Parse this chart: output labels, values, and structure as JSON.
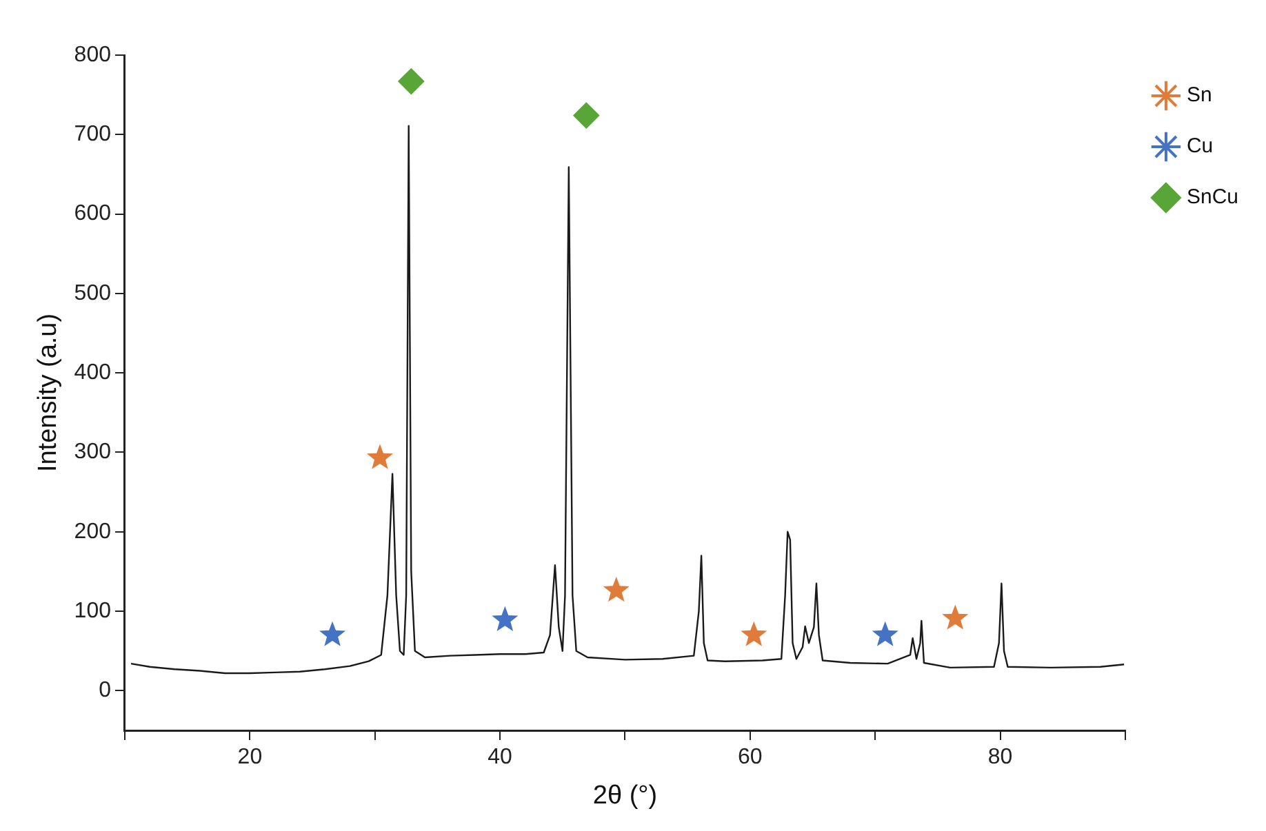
{
  "chart_data": {
    "type": "line",
    "xlabel": "2θ (°)",
    "ylabel": "Intensity (a.u)",
    "xlim": [
      10,
      90
    ],
    "xticks": [
      {
        "value": 10,
        "label": null
      },
      20,
      {
        "value": 30,
        "label": null
      },
      40,
      {
        "value": 50,
        "label": null
      },
      60,
      {
        "value": 70,
        "label": null
      },
      80,
      {
        "value": 90,
        "label": null
      }
    ],
    "ylim": [
      -50,
      800
    ],
    "yticks": [
      0,
      100,
      200,
      300,
      400,
      500,
      600,
      700,
      800
    ],
    "grid": false,
    "legend": "top right",
    "series": [
      {
        "type": "line",
        "color": "#1a1a1a",
        "marker": "none",
        "x": [
          10.5,
          12,
          14,
          16,
          18,
          20,
          22,
          24,
          26,
          28,
          29.5,
          30.5,
          31.0,
          31.4,
          31.7,
          32.0,
          32.3,
          32.5,
          32.7,
          32.9,
          33.2,
          34,
          36,
          38,
          40,
          42,
          43.5,
          44.0,
          44.4,
          44.7,
          45.0,
          45.2,
          45.5,
          45.8,
          46.1,
          47,
          50,
          53,
          55.5,
          55.9,
          56.1,
          56.3,
          56.6,
          58,
          61,
          62.5,
          62.8,
          63.0,
          63.2,
          63.4,
          63.7,
          64.2,
          64.4,
          64.7,
          65.1,
          65.3,
          65.5,
          65.8,
          68,
          71,
          72.8,
          73.0,
          73.3,
          73.6,
          73.7,
          73.9,
          76,
          79.5,
          79.9,
          80.1,
          80.3,
          80.6,
          84,
          88,
          89.9
        ],
        "values": [
          34,
          30,
          27,
          25,
          22,
          22,
          23,
          24,
          27,
          31,
          37,
          45,
          120,
          273,
          120,
          50,
          45,
          120,
          711,
          150,
          50,
          42,
          44,
          45,
          46,
          46,
          48,
          70,
          158,
          80,
          50,
          120,
          659,
          120,
          50,
          42,
          39,
          40,
          44,
          100,
          170,
          60,
          38,
          37,
          38,
          40,
          120,
          200,
          190,
          60,
          40,
          55,
          81,
          60,
          80,
          135,
          70,
          38,
          35,
          34,
          45,
          66,
          40,
          60,
          88,
          35,
          29,
          30,
          60,
          135,
          50,
          30,
          29,
          30,
          33
        ]
      },
      {
        "type": "scatter",
        "name": "Sn",
        "color": "#e07b39",
        "marker": "star",
        "x": [
          30.4,
          49.3,
          60.3,
          76.4
        ],
        "values": [
          293,
          126,
          70,
          91
        ]
      },
      {
        "type": "scatter",
        "name": "Cu",
        "color": "#4472c4",
        "marker": "star",
        "x": [
          26.6,
          40.4,
          70.8
        ],
        "values": [
          70,
          89,
          70
        ]
      },
      {
        "type": "scatter",
        "name": "SnCu",
        "color": "#5aa537",
        "marker": "diamond",
        "x": [
          32.9,
          46.9
        ],
        "values": [
          767,
          724
        ]
      }
    ]
  }
}
